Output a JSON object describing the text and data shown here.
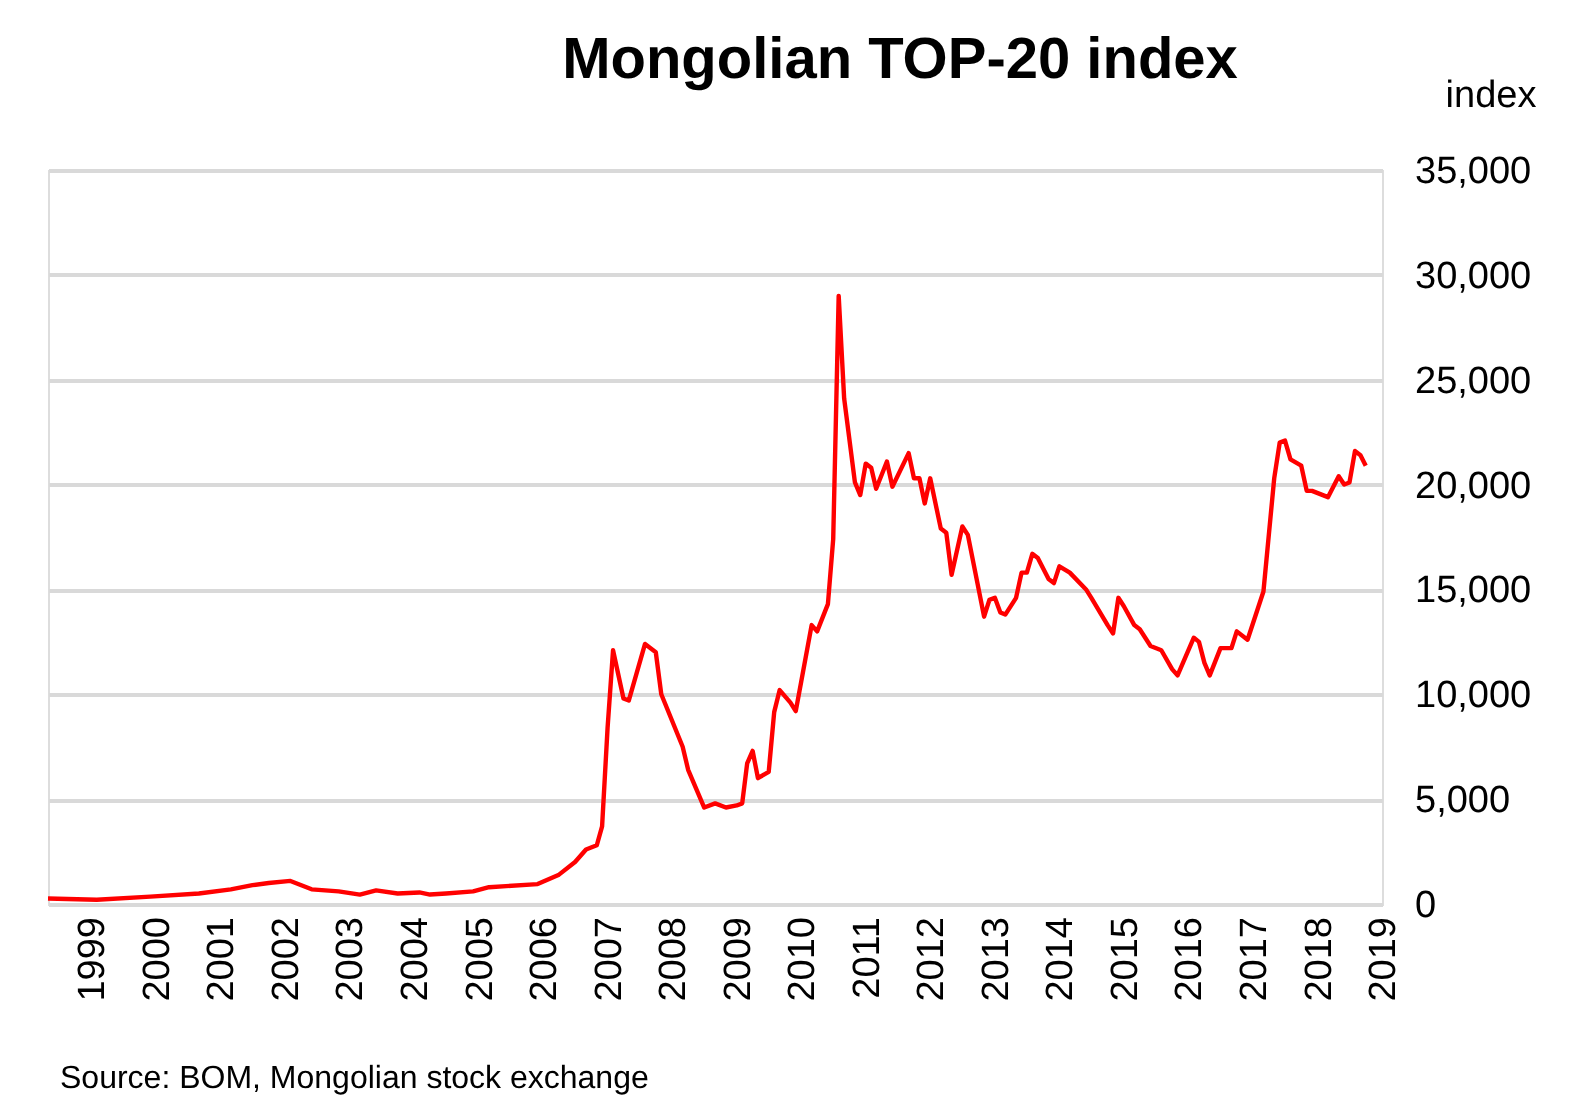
{
  "chart_data": {
    "type": "line",
    "title": "Mongolian TOP-20 index",
    "ylabel": "index",
    "x": [
      "1998-05",
      "1999-02",
      "1999-12",
      "2000-09",
      "2001-03",
      "2001-07",
      "2001-10",
      "2002-02",
      "2002-06",
      "2002-11",
      "2003-03",
      "2003-06",
      "2003-10",
      "2004-02",
      "2004-04",
      "2004-07",
      "2004-12",
      "2005-03",
      "2005-12",
      "2006-04",
      "2006-07",
      "2006-09",
      "2006-11",
      "2006-12",
      "2007-01",
      "2007-02",
      "2007-04",
      "2007-05",
      "2007-08",
      "2007-10",
      "2007-11",
      "2008-03",
      "2008-04",
      "2008-07",
      "2008-09",
      "2008-11",
      "2009-01",
      "2009-02",
      "2009-03",
      "2009-04",
      "2009-05",
      "2009-07",
      "2009-08",
      "2009-09",
      "2009-11",
      "2009-12",
      "2010-01",
      "2010-03",
      "2010-04",
      "2010-06",
      "2010-07",
      "2010-08",
      "2010-09",
      "2010-11",
      "2010-12",
      "2011-01",
      "2011-02",
      "2011-03",
      "2011-05",
      "2011-06",
      "2011-09",
      "2011-10",
      "2011-11",
      "2011-12",
      "2012-01",
      "2012-03",
      "2012-04",
      "2012-05",
      "2012-07",
      "2012-08",
      "2012-11",
      "2012-12",
      "2013-01",
      "2013-02",
      "2013-03",
      "2013-05",
      "2013-06",
      "2013-07",
      "2013-08",
      "2013-09",
      "2013-11",
      "2013-12",
      "2014-01",
      "2014-03",
      "2014-06",
      "2014-07",
      "2014-10",
      "2014-11",
      "2014-12",
      "2015-01",
      "2015-03",
      "2015-04",
      "2015-06",
      "2015-08",
      "2015-10",
      "2015-11",
      "2016-02",
      "2016-03",
      "2016-04",
      "2016-05",
      "2016-07",
      "2016-09",
      "2016-10",
      "2016-12",
      "2017-03",
      "2017-05",
      "2017-06",
      "2017-07",
      "2017-08",
      "2017-10",
      "2017-11",
      "2017-12",
      "2018-03",
      "2018-05",
      "2018-06",
      "2018-07",
      "2018-08",
      "2018-09",
      "2018-10"
    ],
    "series": [
      {
        "color": "#ff0000",
        "values": [
          260,
          200,
          350,
          500,
          700,
          900,
          1000,
          1100,
          700,
          600,
          450,
          650,
          500,
          550,
          450,
          500,
          600,
          800,
          950,
          1400,
          2000,
          2600,
          2800,
          3700,
          8400,
          12100,
          9800,
          9700,
          12400,
          12000,
          10000,
          7500,
          6400,
          4600,
          4800,
          4600,
          4700,
          4800,
          6700,
          7300,
          6000,
          6300,
          9150,
          10200,
          9600,
          9200,
          10600,
          13300,
          13000,
          14300,
          17400,
          29000,
          24100,
          20100,
          19500,
          21000,
          20800,
          19800,
          21100,
          19900,
          21500,
          20300,
          20300,
          19100,
          20300,
          17900,
          17700,
          15700,
          18000,
          17600,
          13700,
          14500,
          14600,
          13900,
          13800,
          14600,
          15800,
          15800,
          16700,
          16500,
          15500,
          15300,
          16100,
          15800,
          15000,
          14600,
          13300,
          12900,
          14600,
          14200,
          13300,
          13100,
          12300,
          12100,
          11200,
          10900,
          12700,
          12500,
          11500,
          10900,
          12200,
          12200,
          13000,
          12600,
          14900,
          20300,
          22000,
          22100,
          21200,
          20900,
          19700,
          19700,
          19400,
          20400,
          20000,
          20100,
          21600,
          21400,
          20900
        ]
      }
    ],
    "xlim": [
      "1998-05",
      "2019-01"
    ],
    "xticks": [
      {
        "value": "1999-01",
        "label": "1999"
      },
      {
        "value": "2000-01",
        "label": "2000"
      },
      {
        "value": "2001-01",
        "label": "2001"
      },
      {
        "value": "2002-01",
        "label": "2002"
      },
      {
        "value": "2003-01",
        "label": "2003"
      },
      {
        "value": "2004-01",
        "label": "2004"
      },
      {
        "value": "2005-01",
        "label": "2005"
      },
      {
        "value": "2006-01",
        "label": "2006"
      },
      {
        "value": "2007-01",
        "label": "2007"
      },
      {
        "value": "2008-01",
        "label": "2008"
      },
      {
        "value": "2009-01",
        "label": "2009"
      },
      {
        "value": "2010-01",
        "label": "2010"
      },
      {
        "value": "2011-01",
        "label": "2011"
      },
      {
        "value": "2012-01",
        "label": "2012"
      },
      {
        "value": "2013-01",
        "label": "2013"
      },
      {
        "value": "2014-01",
        "label": "2014"
      },
      {
        "value": "2015-01",
        "label": "2015"
      },
      {
        "value": "2016-01",
        "label": "2016"
      },
      {
        "value": "2017-01",
        "label": "2017"
      },
      {
        "value": "2018-01",
        "label": "2018"
      },
      {
        "value": "2019-01",
        "label": "2019"
      }
    ],
    "ylim": [
      0,
      35000
    ],
    "yticks": [
      {
        "value": 0,
        "label": "0"
      },
      {
        "value": 5000,
        "label": "5,000"
      },
      {
        "value": 10000,
        "label": "10,000"
      },
      {
        "value": 15000,
        "label": "15,000"
      },
      {
        "value": 20000,
        "label": "20,000"
      },
      {
        "value": 25000,
        "label": "25,000"
      },
      {
        "value": 30000,
        "label": "30,000"
      },
      {
        "value": 35000,
        "label": "35,000"
      }
    ],
    "grid": "y",
    "marker": "none",
    "line_style": "solid",
    "annotations": [
      "Source: BOM, Mongolian stock exchange"
    ]
  }
}
